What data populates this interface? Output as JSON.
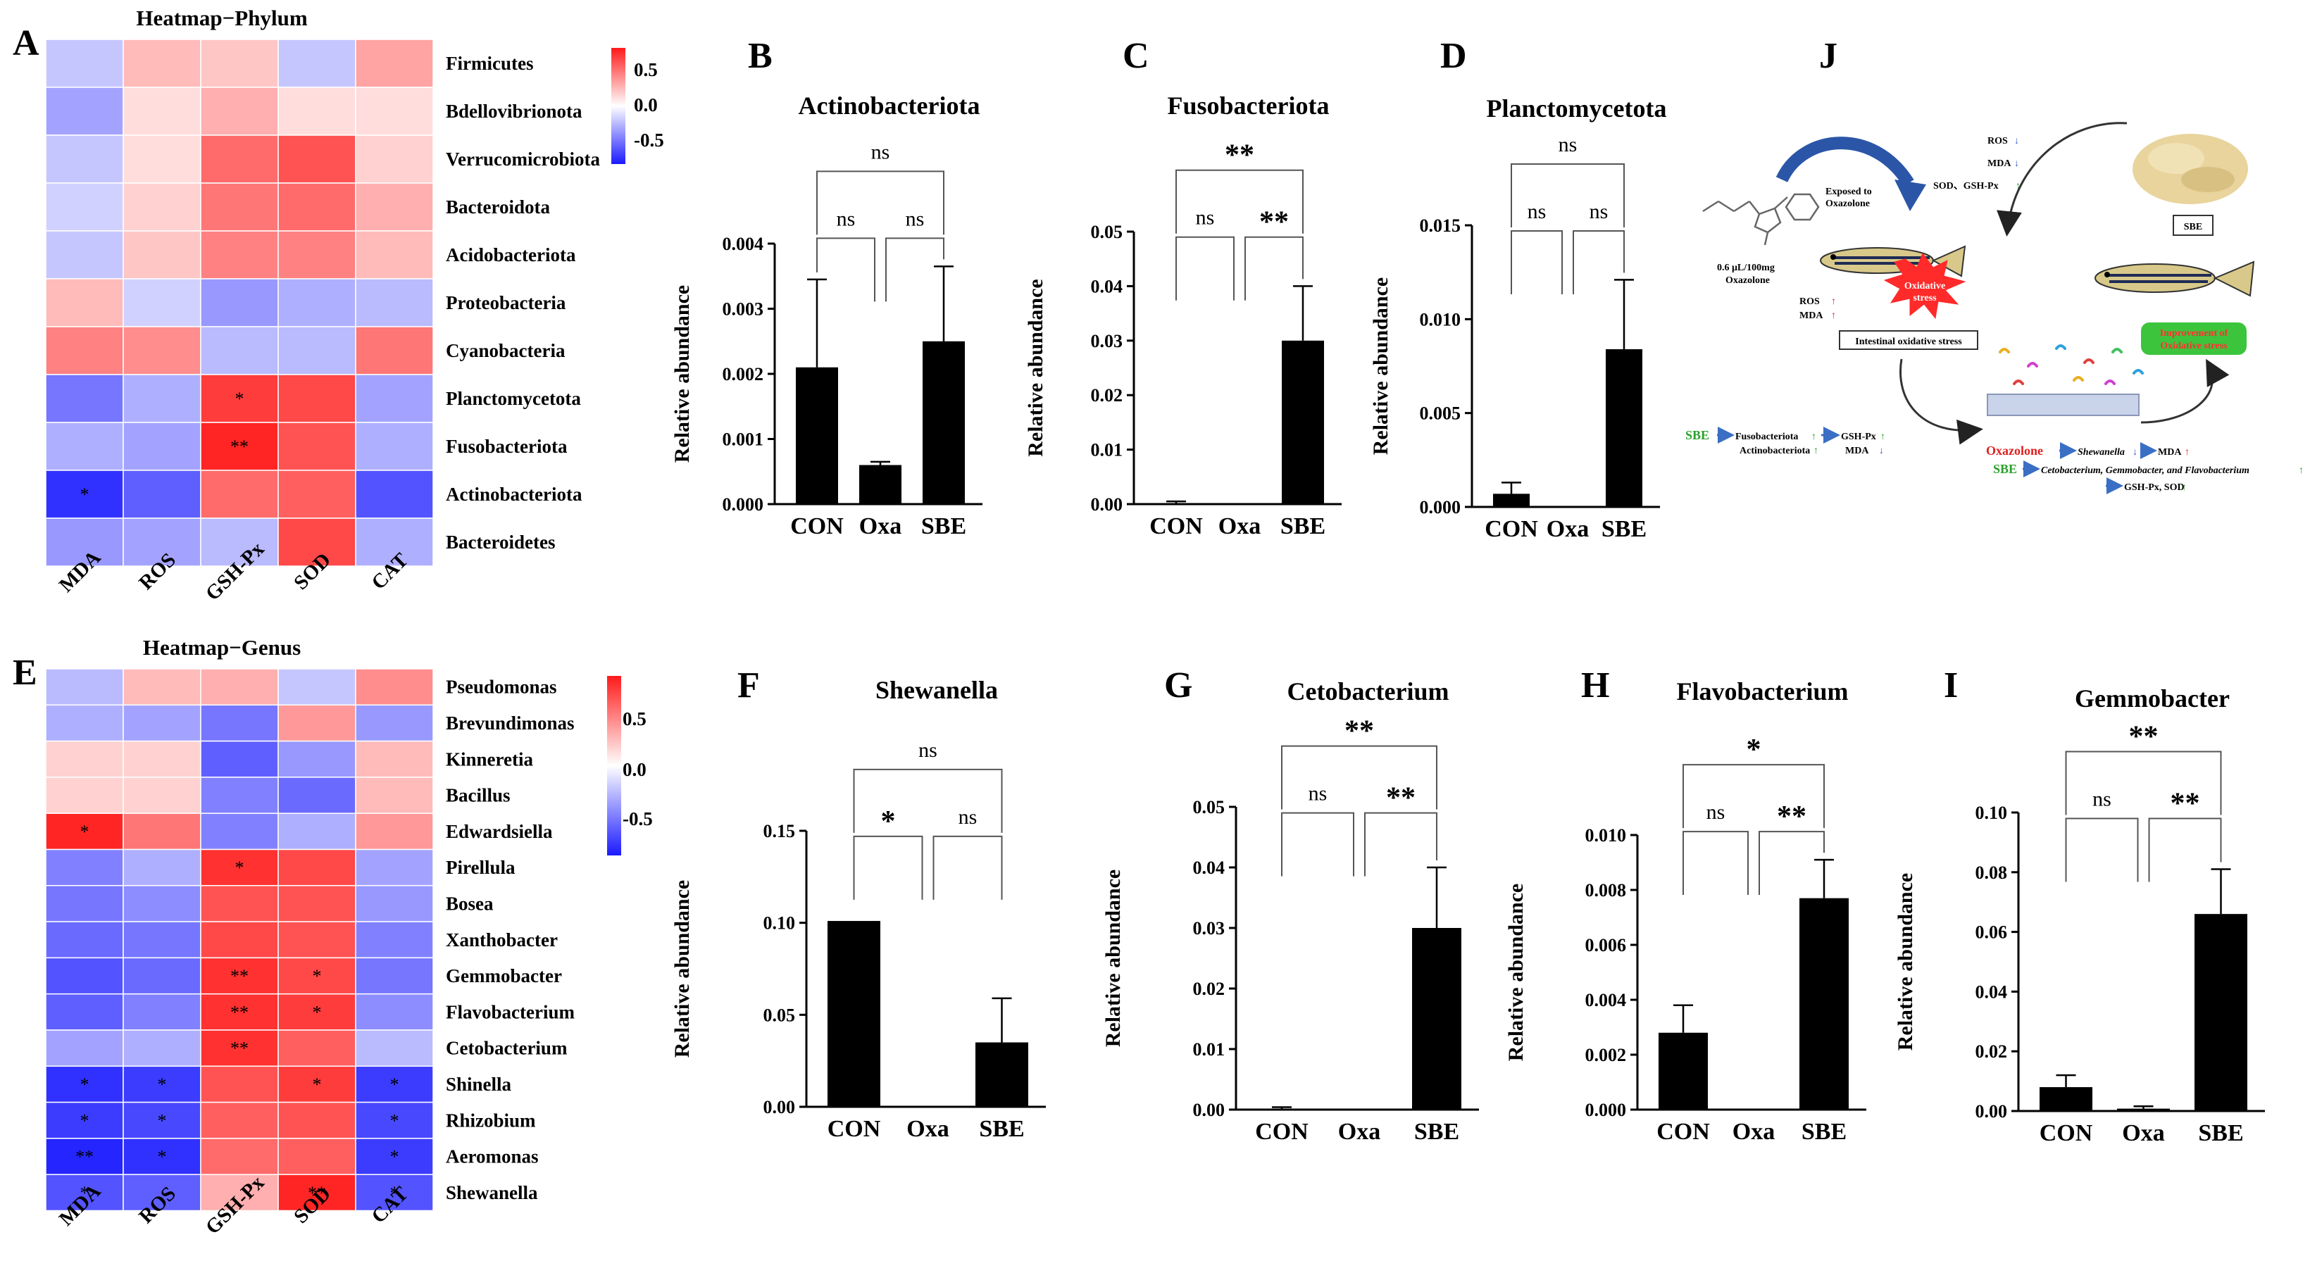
{
  "colors": {
    "high": "#ff1a1a",
    "mid": "#ffffff",
    "low": "#1a1aff",
    "bar": "#000000"
  },
  "heatmaps": [
    {
      "id": "A",
      "letter": "A",
      "title": "Heatmap−Phylum",
      "columns": [
        "MDA",
        "ROS",
        "GSH-Px",
        "SOD",
        "CAT"
      ],
      "legend_ticks": [
        "0.5",
        "0.0",
        "-0.5"
      ],
      "rows": [
        {
          "label": "Firmicutes",
          "values": [
            -0.25,
            0.3,
            0.25,
            -0.25,
            0.4
          ],
          "marks": [
            "",
            "",
            "",
            "",
            ""
          ]
        },
        {
          "label": "Bdellovibrionota",
          "values": [
            -0.4,
            0.15,
            0.35,
            0.15,
            0.15
          ],
          "marks": [
            "",
            "",
            "",
            "",
            ""
          ]
        },
        {
          "label": "Verrucomicrobiota",
          "values": [
            -0.25,
            0.15,
            0.65,
            0.75,
            0.2
          ],
          "marks": [
            "",
            "",
            "",
            "",
            ""
          ]
        },
        {
          "label": "Bacteroidota",
          "values": [
            -0.2,
            0.2,
            0.6,
            0.65,
            0.35
          ],
          "marks": [
            "",
            "",
            "",
            "",
            ""
          ]
        },
        {
          "label": "Acidobacteriota",
          "values": [
            -0.25,
            0.25,
            0.55,
            0.55,
            0.3
          ],
          "marks": [
            "",
            "",
            "",
            "",
            ""
          ]
        },
        {
          "label": "Proteobacteria",
          "values": [
            0.3,
            -0.2,
            -0.45,
            -0.35,
            -0.3
          ],
          "marks": [
            "",
            "",
            "",
            "",
            ""
          ]
        },
        {
          "label": "Cyanobacteria",
          "values": [
            0.55,
            0.5,
            -0.3,
            -0.3,
            0.6
          ],
          "marks": [
            "",
            "",
            "",
            "",
            ""
          ]
        },
        {
          "label": "Planctomycetota",
          "values": [
            -0.6,
            -0.35,
            0.85,
            0.8,
            -0.4
          ],
          "marks": [
            "",
            "",
            "*",
            "",
            ""
          ]
        },
        {
          "label": "Fusobacteriota",
          "values": [
            -0.35,
            -0.4,
            0.95,
            0.75,
            -0.35
          ],
          "marks": [
            "",
            "",
            "**",
            "",
            ""
          ]
        },
        {
          "label": "Actinobacteriota",
          "values": [
            -0.9,
            -0.7,
            0.65,
            0.7,
            -0.75
          ],
          "marks": [
            "*",
            "",
            "",
            "",
            ""
          ]
        },
        {
          "label": "Bacteroidetes",
          "values": [
            -0.45,
            -0.4,
            -0.3,
            0.8,
            -0.35
          ],
          "marks": [
            "",
            "",
            "",
            "",
            ""
          ]
        }
      ]
    },
    {
      "id": "E",
      "letter": "E",
      "title": "Heatmap−Genus",
      "columns": [
        "MDA",
        "ROS",
        "GSH-Px",
        "SOD",
        "CAT"
      ],
      "legend_ticks": [
        "0.5",
        "0.0",
        "-0.5"
      ],
      "rows": [
        {
          "label": "Pseudomonas",
          "values": [
            -0.3,
            0.3,
            0.35,
            -0.25,
            0.5
          ],
          "marks": [
            "",
            "",
            "",
            "",
            ""
          ]
        },
        {
          "label": "Brevundimonas",
          "values": [
            -0.35,
            -0.4,
            -0.6,
            0.45,
            -0.45
          ],
          "marks": [
            "",
            "",
            "",
            "",
            ""
          ]
        },
        {
          "label": "Kinneretia",
          "values": [
            0.2,
            0.2,
            -0.7,
            -0.45,
            0.3
          ],
          "marks": [
            "",
            "",
            "",
            "",
            ""
          ]
        },
        {
          "label": "Bacillus",
          "values": [
            0.2,
            0.2,
            -0.55,
            -0.65,
            0.3
          ],
          "marks": [
            "",
            "",
            "",
            "",
            ""
          ]
        },
        {
          "label": "Edwardsiella",
          "values": [
            0.95,
            0.6,
            -0.55,
            -0.35,
            0.45
          ],
          "marks": [
            "*",
            "",
            "",
            "",
            ""
          ]
        },
        {
          "label": "Pirellula",
          "values": [
            -0.55,
            -0.35,
            0.9,
            0.8,
            -0.4
          ],
          "marks": [
            "",
            "",
            "*",
            "",
            ""
          ]
        },
        {
          "label": "Bosea",
          "values": [
            -0.6,
            -0.5,
            0.75,
            0.75,
            -0.45
          ],
          "marks": [
            "",
            "",
            "",
            "",
            ""
          ]
        },
        {
          "label": "Xanthobacter",
          "values": [
            -0.65,
            -0.6,
            0.8,
            0.75,
            -0.55
          ],
          "marks": [
            "",
            "",
            "",
            "",
            ""
          ]
        },
        {
          "label": "Gemmobacter",
          "values": [
            -0.75,
            -0.65,
            0.9,
            0.8,
            -0.6
          ],
          "marks": [
            "",
            "",
            "**",
            "*",
            ""
          ]
        },
        {
          "label": "Flavobacterium",
          "values": [
            -0.7,
            -0.55,
            0.9,
            0.85,
            -0.5
          ],
          "marks": [
            "",
            "",
            "**",
            "*",
            ""
          ]
        },
        {
          "label": "Cetobacterium",
          "values": [
            -0.4,
            -0.35,
            0.9,
            0.7,
            -0.3
          ],
          "marks": [
            "",
            "",
            "**",
            "",
            ""
          ]
        },
        {
          "label": "Shinella",
          "values": [
            -0.9,
            -0.85,
            0.75,
            0.85,
            -0.85
          ],
          "marks": [
            "*",
            "*",
            "",
            "*",
            "*"
          ]
        },
        {
          "label": "Rhizobium",
          "values": [
            -0.85,
            -0.8,
            0.7,
            0.75,
            -0.8
          ],
          "marks": [
            "*",
            "*",
            "",
            "",
            "*"
          ]
        },
        {
          "label": "Aeromonas",
          "values": [
            -0.95,
            -0.9,
            0.65,
            0.7,
            -0.85
          ],
          "marks": [
            "**",
            "*",
            "",
            "",
            "*"
          ]
        },
        {
          "label": "Shewanella",
          "values": [
            -0.75,
            -0.7,
            0.35,
            0.95,
            -0.75
          ],
          "marks": [
            "*",
            "",
            "",
            "**",
            "*"
          ]
        }
      ]
    }
  ],
  "chart_data": [
    {
      "panel": "B",
      "type": "bar",
      "title": "Actinobacteriota",
      "categories": [
        "CON",
        "Oxa",
        "SBE"
      ],
      "values": [
        0.0021,
        0.0006,
        0.0025
      ],
      "errors": [
        0.00135,
        5e-05,
        0.00115
      ],
      "ylabel": "Relative abundance",
      "yticks": [
        "0.000",
        "0.001",
        "0.002",
        "0.003",
        "0.004"
      ],
      "ylim": [
        0,
        0.004
      ],
      "comparisons": [
        {
          "from": 0,
          "to": 1,
          "label": "ns",
          "level": 0
        },
        {
          "from": 1,
          "to": 2,
          "label": "ns",
          "level": 0
        },
        {
          "from": 0,
          "to": 2,
          "label": "ns",
          "level": 1
        }
      ]
    },
    {
      "panel": "C",
      "type": "bar",
      "title": "Fusobacteriota",
      "categories": [
        "CON",
        "Oxa",
        "SBE"
      ],
      "values": [
        0.0001,
        0,
        0.03
      ],
      "errors": [
        0.0004,
        0,
        0.01
      ],
      "ylabel": "Relative abundance",
      "yticks": [
        "0.00",
        "0.01",
        "0.02",
        "0.03",
        "0.04",
        "0.05"
      ],
      "ylim": [
        0,
        0.05
      ],
      "comparisons": [
        {
          "from": 0,
          "to": 1,
          "label": "ns",
          "level": 0
        },
        {
          "from": 1,
          "to": 2,
          "label": "**",
          "level": 0
        },
        {
          "from": 0,
          "to": 2,
          "label": "**",
          "level": 1
        }
      ]
    },
    {
      "panel": "D",
      "type": "bar",
      "title": "Planctomycetota",
      "categories": [
        "CON",
        "Oxa",
        "SBE"
      ],
      "values": [
        0.0007,
        0,
        0.0084
      ],
      "errors": [
        0.0006,
        0,
        0.0037
      ],
      "ylabel": "Relative abundance",
      "yticks": [
        "0.000",
        "0.005",
        "0.010",
        "0.015"
      ],
      "ylim": [
        0,
        0.015
      ],
      "comparisons": [
        {
          "from": 0,
          "to": 1,
          "label": "ns",
          "level": 0
        },
        {
          "from": 1,
          "to": 2,
          "label": "ns",
          "level": 0
        },
        {
          "from": 0,
          "to": 2,
          "label": "ns",
          "level": 1
        }
      ]
    },
    {
      "panel": "F",
      "type": "bar",
      "title": "Shewanella",
      "categories": [
        "CON",
        "Oxa",
        "SBE"
      ],
      "values": [
        0.101,
        0,
        0.035
      ],
      "errors": [
        0,
        0,
        0.024
      ],
      "ylabel": "Relative abundance",
      "yticks": [
        "0.00",
        "0.05",
        "0.10",
        "0.15"
      ],
      "ylim": [
        0,
        0.15
      ],
      "comparisons": [
        {
          "from": 0,
          "to": 1,
          "label": "*",
          "level": 0
        },
        {
          "from": 1,
          "to": 2,
          "label": "ns",
          "level": 0
        },
        {
          "from": 0,
          "to": 2,
          "label": "ns",
          "level": 1
        }
      ]
    },
    {
      "panel": "G",
      "type": "bar",
      "title": "Cetobacterium",
      "categories": [
        "CON",
        "Oxa",
        "SBE"
      ],
      "values": [
        0.0001,
        0,
        0.03
      ],
      "errors": [
        0.0003,
        0,
        0.01
      ],
      "ylabel": "Relative abundance",
      "yticks": [
        "0.00",
        "0.01",
        "0.02",
        "0.03",
        "0.04",
        "0.05"
      ],
      "ylim": [
        0,
        0.05
      ],
      "comparisons": [
        {
          "from": 0,
          "to": 1,
          "label": "ns",
          "level": 0
        },
        {
          "from": 1,
          "to": 2,
          "label": "**",
          "level": 0
        },
        {
          "from": 0,
          "to": 2,
          "label": "**",
          "level": 1
        }
      ]
    },
    {
      "panel": "H",
      "type": "bar",
      "title": "Flavobacterium",
      "categories": [
        "CON",
        "Oxa",
        "SBE"
      ],
      "values": [
        0.0028,
        0,
        0.0077
      ],
      "errors": [
        0.001,
        0,
        0.0014
      ],
      "ylabel": "Relative abundance",
      "yticks": [
        "0.000",
        "0.002",
        "0.004",
        "0.006",
        "0.008",
        "0.010"
      ],
      "ylim": [
        0,
        0.01
      ],
      "comparisons": [
        {
          "from": 0,
          "to": 1,
          "label": "ns",
          "level": 0
        },
        {
          "from": 1,
          "to": 2,
          "label": "**",
          "level": 0
        },
        {
          "from": 0,
          "to": 2,
          "label": "*",
          "level": 1
        }
      ]
    },
    {
      "panel": "I",
      "type": "bar",
      "title": "Gemmobacter",
      "categories": [
        "CON",
        "Oxa",
        "SBE"
      ],
      "values": [
        0.008,
        0.0008,
        0.066
      ],
      "errors": [
        0.004,
        0.0008,
        0.015
      ],
      "ylabel": "Relative abundance",
      "yticks": [
        "0.00",
        "0.02",
        "0.04",
        "0.06",
        "0.08",
        "0.10"
      ],
      "ylim": [
        0,
        0.1
      ],
      "comparisons": [
        {
          "from": 0,
          "to": 1,
          "label": "ns",
          "level": 0
        },
        {
          "from": 1,
          "to": 2,
          "label": "**",
          "level": 0
        },
        {
          "from": 0,
          "to": 2,
          "label": "**",
          "level": 1
        }
      ]
    }
  ],
  "schematic": {
    "letter": "J",
    "dose_line1": "0.6 μL/100mg",
    "dose_line2": "Oxazolone",
    "exposed_line1": "Exposed to",
    "exposed_line2": "Oxazolone",
    "oxidative_line1": "Oxidative",
    "oxidative_line2": "stress",
    "ros": "ROS",
    "mda": "MDA",
    "intestinal_box": "Intestinal oxidative stress",
    "sbe_box": "SBE",
    "top_ros": "ROS",
    "top_mda": "MDA",
    "top_sod": "SOD、GSH-Px",
    "improve_line1": "Improvement of",
    "improve_line2": "Oxidative stress",
    "left_sbe": "SBE",
    "left_fuso": "Fusobacteriota",
    "left_actino": "Actinobacteriota",
    "left_gsh": "GSH-Px",
    "left_mda": "MDA",
    "oxazolone": "Oxazolone",
    "shewanella": "Shewanella",
    "mda_up": "MDA",
    "sbe2": "SBE",
    "genera": "Cetobacterium, Gemmobacter, and Flavobacterium",
    "gsh_sod": "GSH-Px, SOD"
  }
}
